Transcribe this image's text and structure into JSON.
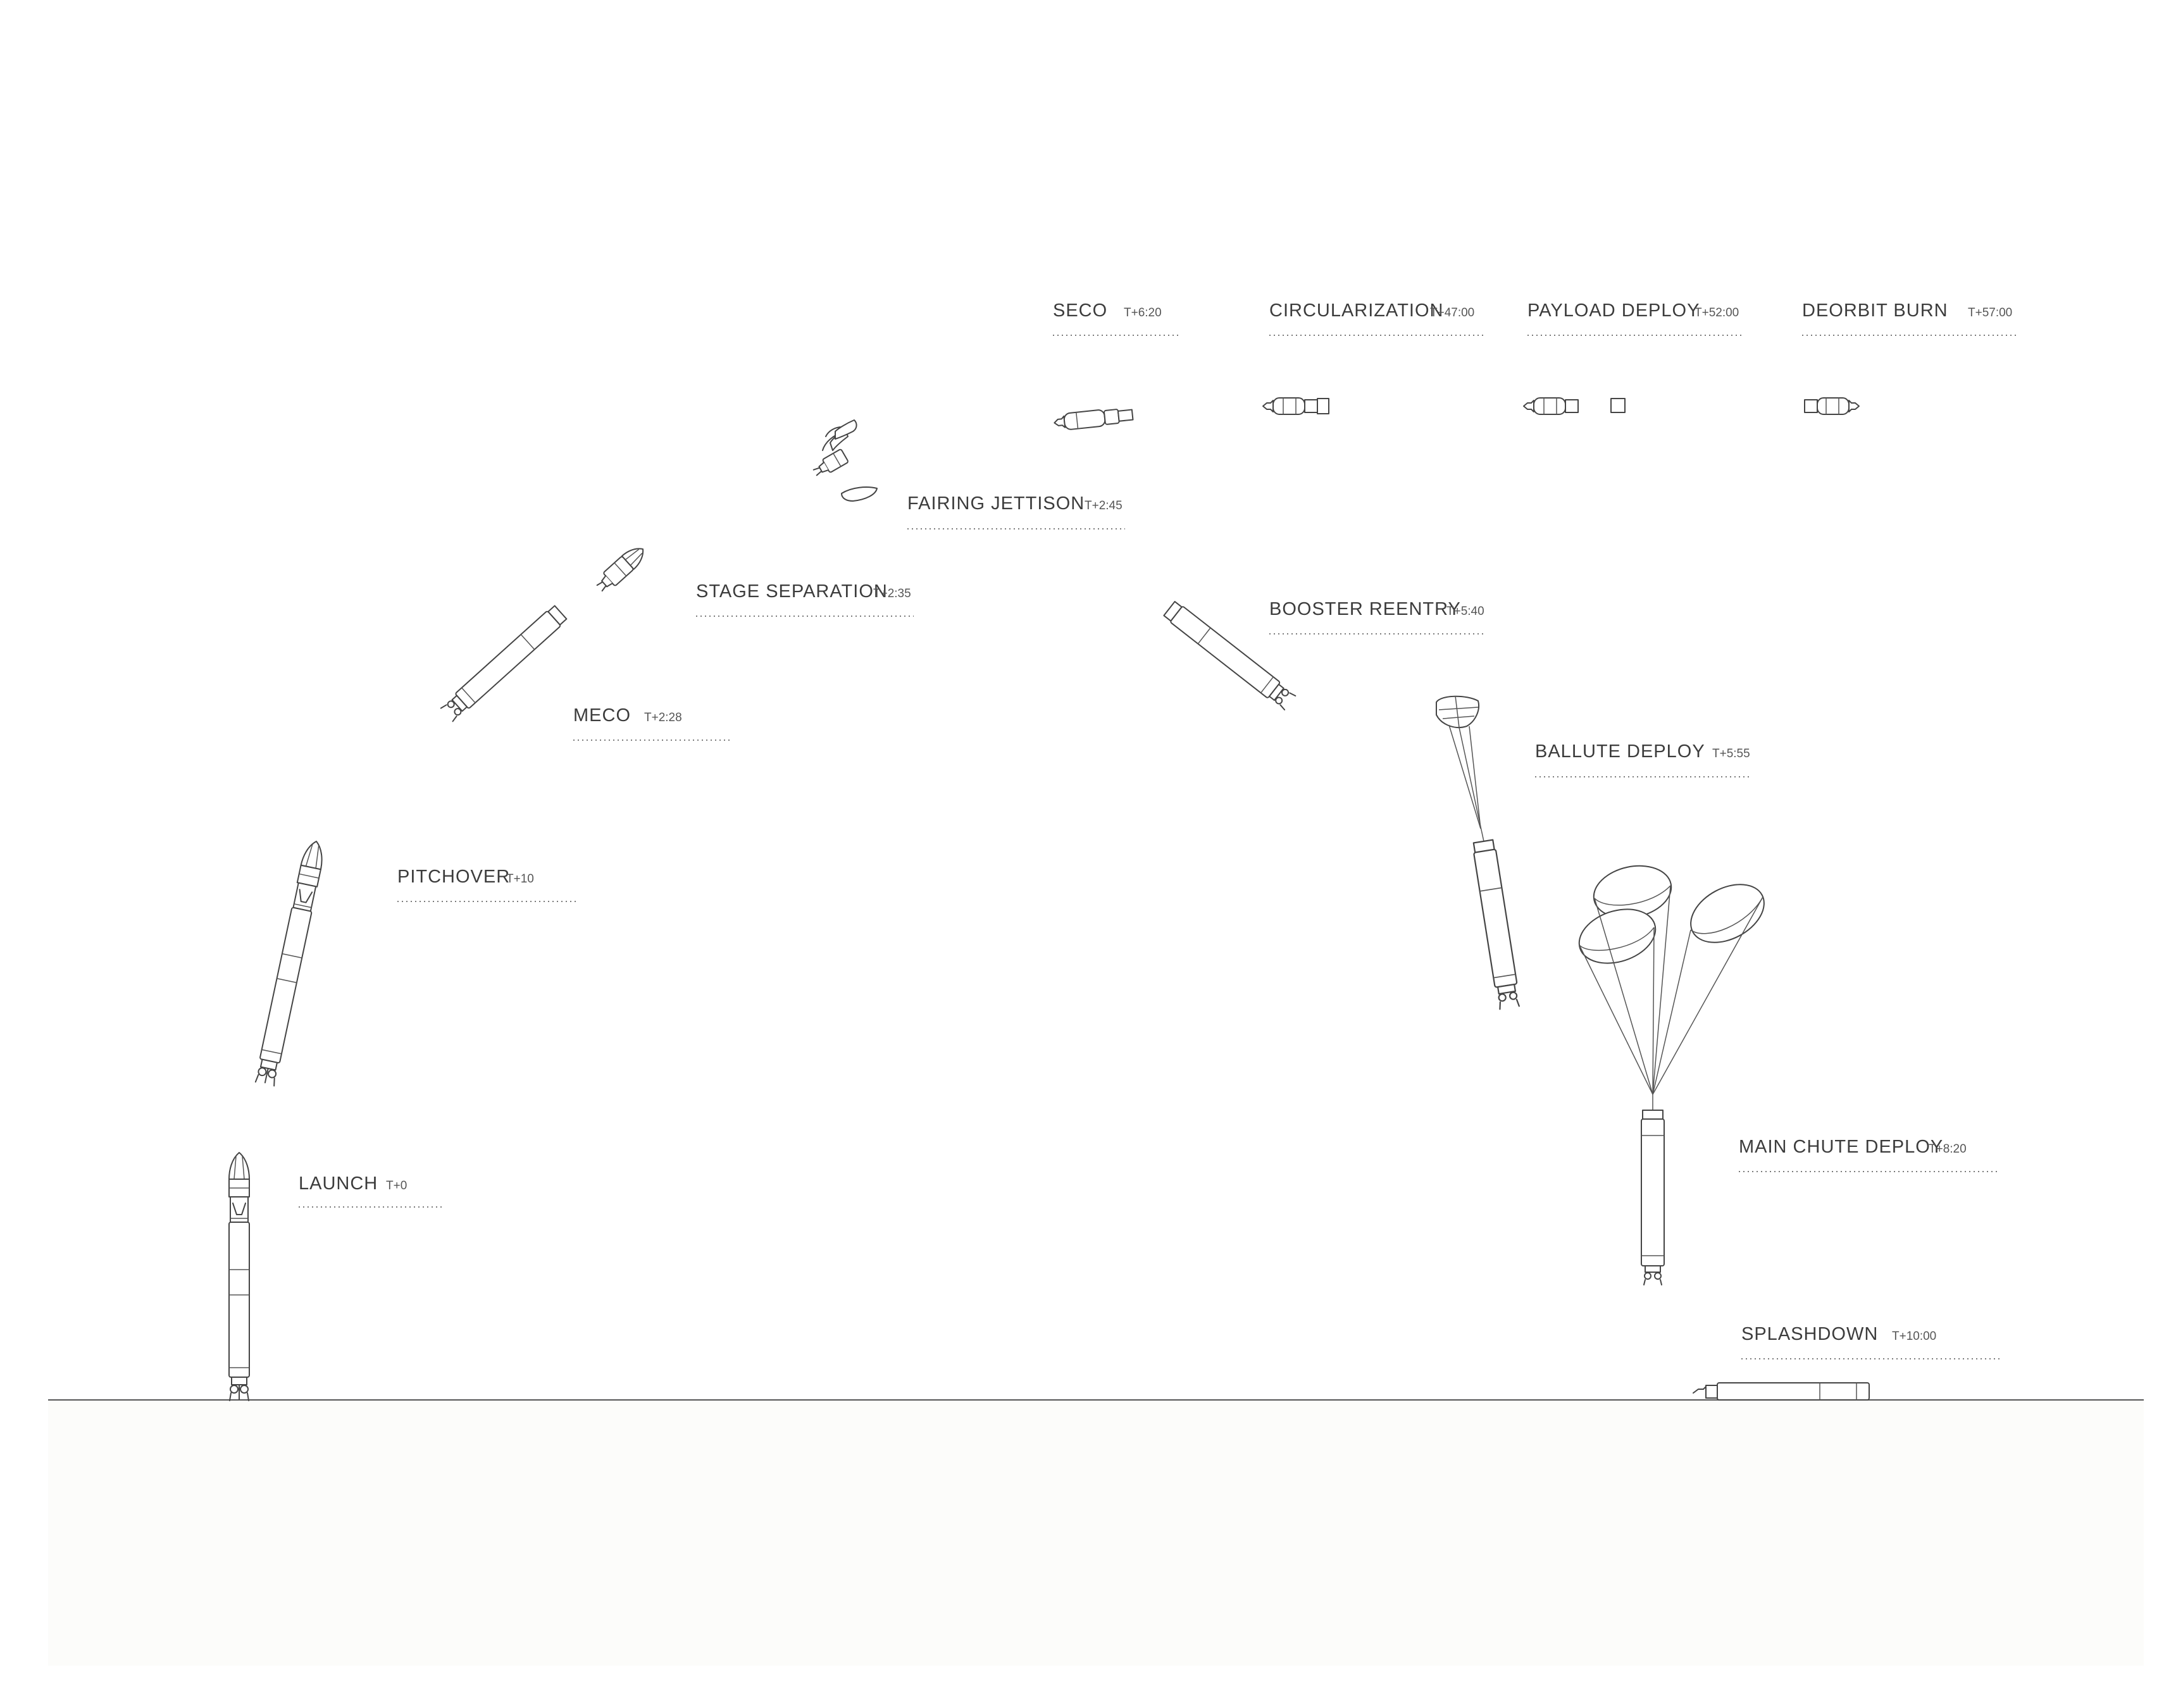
{
  "stages": [
    {
      "id": "launch",
      "label": "LAUNCH",
      "time": "T+0"
    },
    {
      "id": "pitchover",
      "label": "PITCHOVER",
      "time": "T+10"
    },
    {
      "id": "meco",
      "label": "MECO",
      "time": "T+2:28"
    },
    {
      "id": "stage-separation",
      "label": "STAGE SEPARATION",
      "time": "T+2:35"
    },
    {
      "id": "fairing-jettison",
      "label": "FAIRING JETTISON",
      "time": "T+2:45"
    },
    {
      "id": "seco",
      "label": "SECO",
      "time": "T+6:20"
    },
    {
      "id": "circularization",
      "label": "CIRCULARIZATION",
      "time": "T+47:00"
    },
    {
      "id": "payload-deploy",
      "label": "PAYLOAD DEPLOY",
      "time": "T+52:00"
    },
    {
      "id": "deorbit-burn",
      "label": "DEORBIT BURN",
      "time": "T+57:00"
    },
    {
      "id": "booster-reentry",
      "label": "BOOSTER REENTRY",
      "time": "T+5:40"
    },
    {
      "id": "ballute-deploy",
      "label": "BALLUTE DEPLOY",
      "time": "T+5:55"
    },
    {
      "id": "main-chute-deploy",
      "label": "MAIN CHUTE DEPLOY",
      "time": "T+8:20"
    },
    {
      "id": "splashdown",
      "label": "SPLASHDOWN",
      "time": "T+10:00"
    }
  ],
  "colors": {
    "line": "#444444",
    "text": "#3c3c3c",
    "background": "#ffffff"
  }
}
